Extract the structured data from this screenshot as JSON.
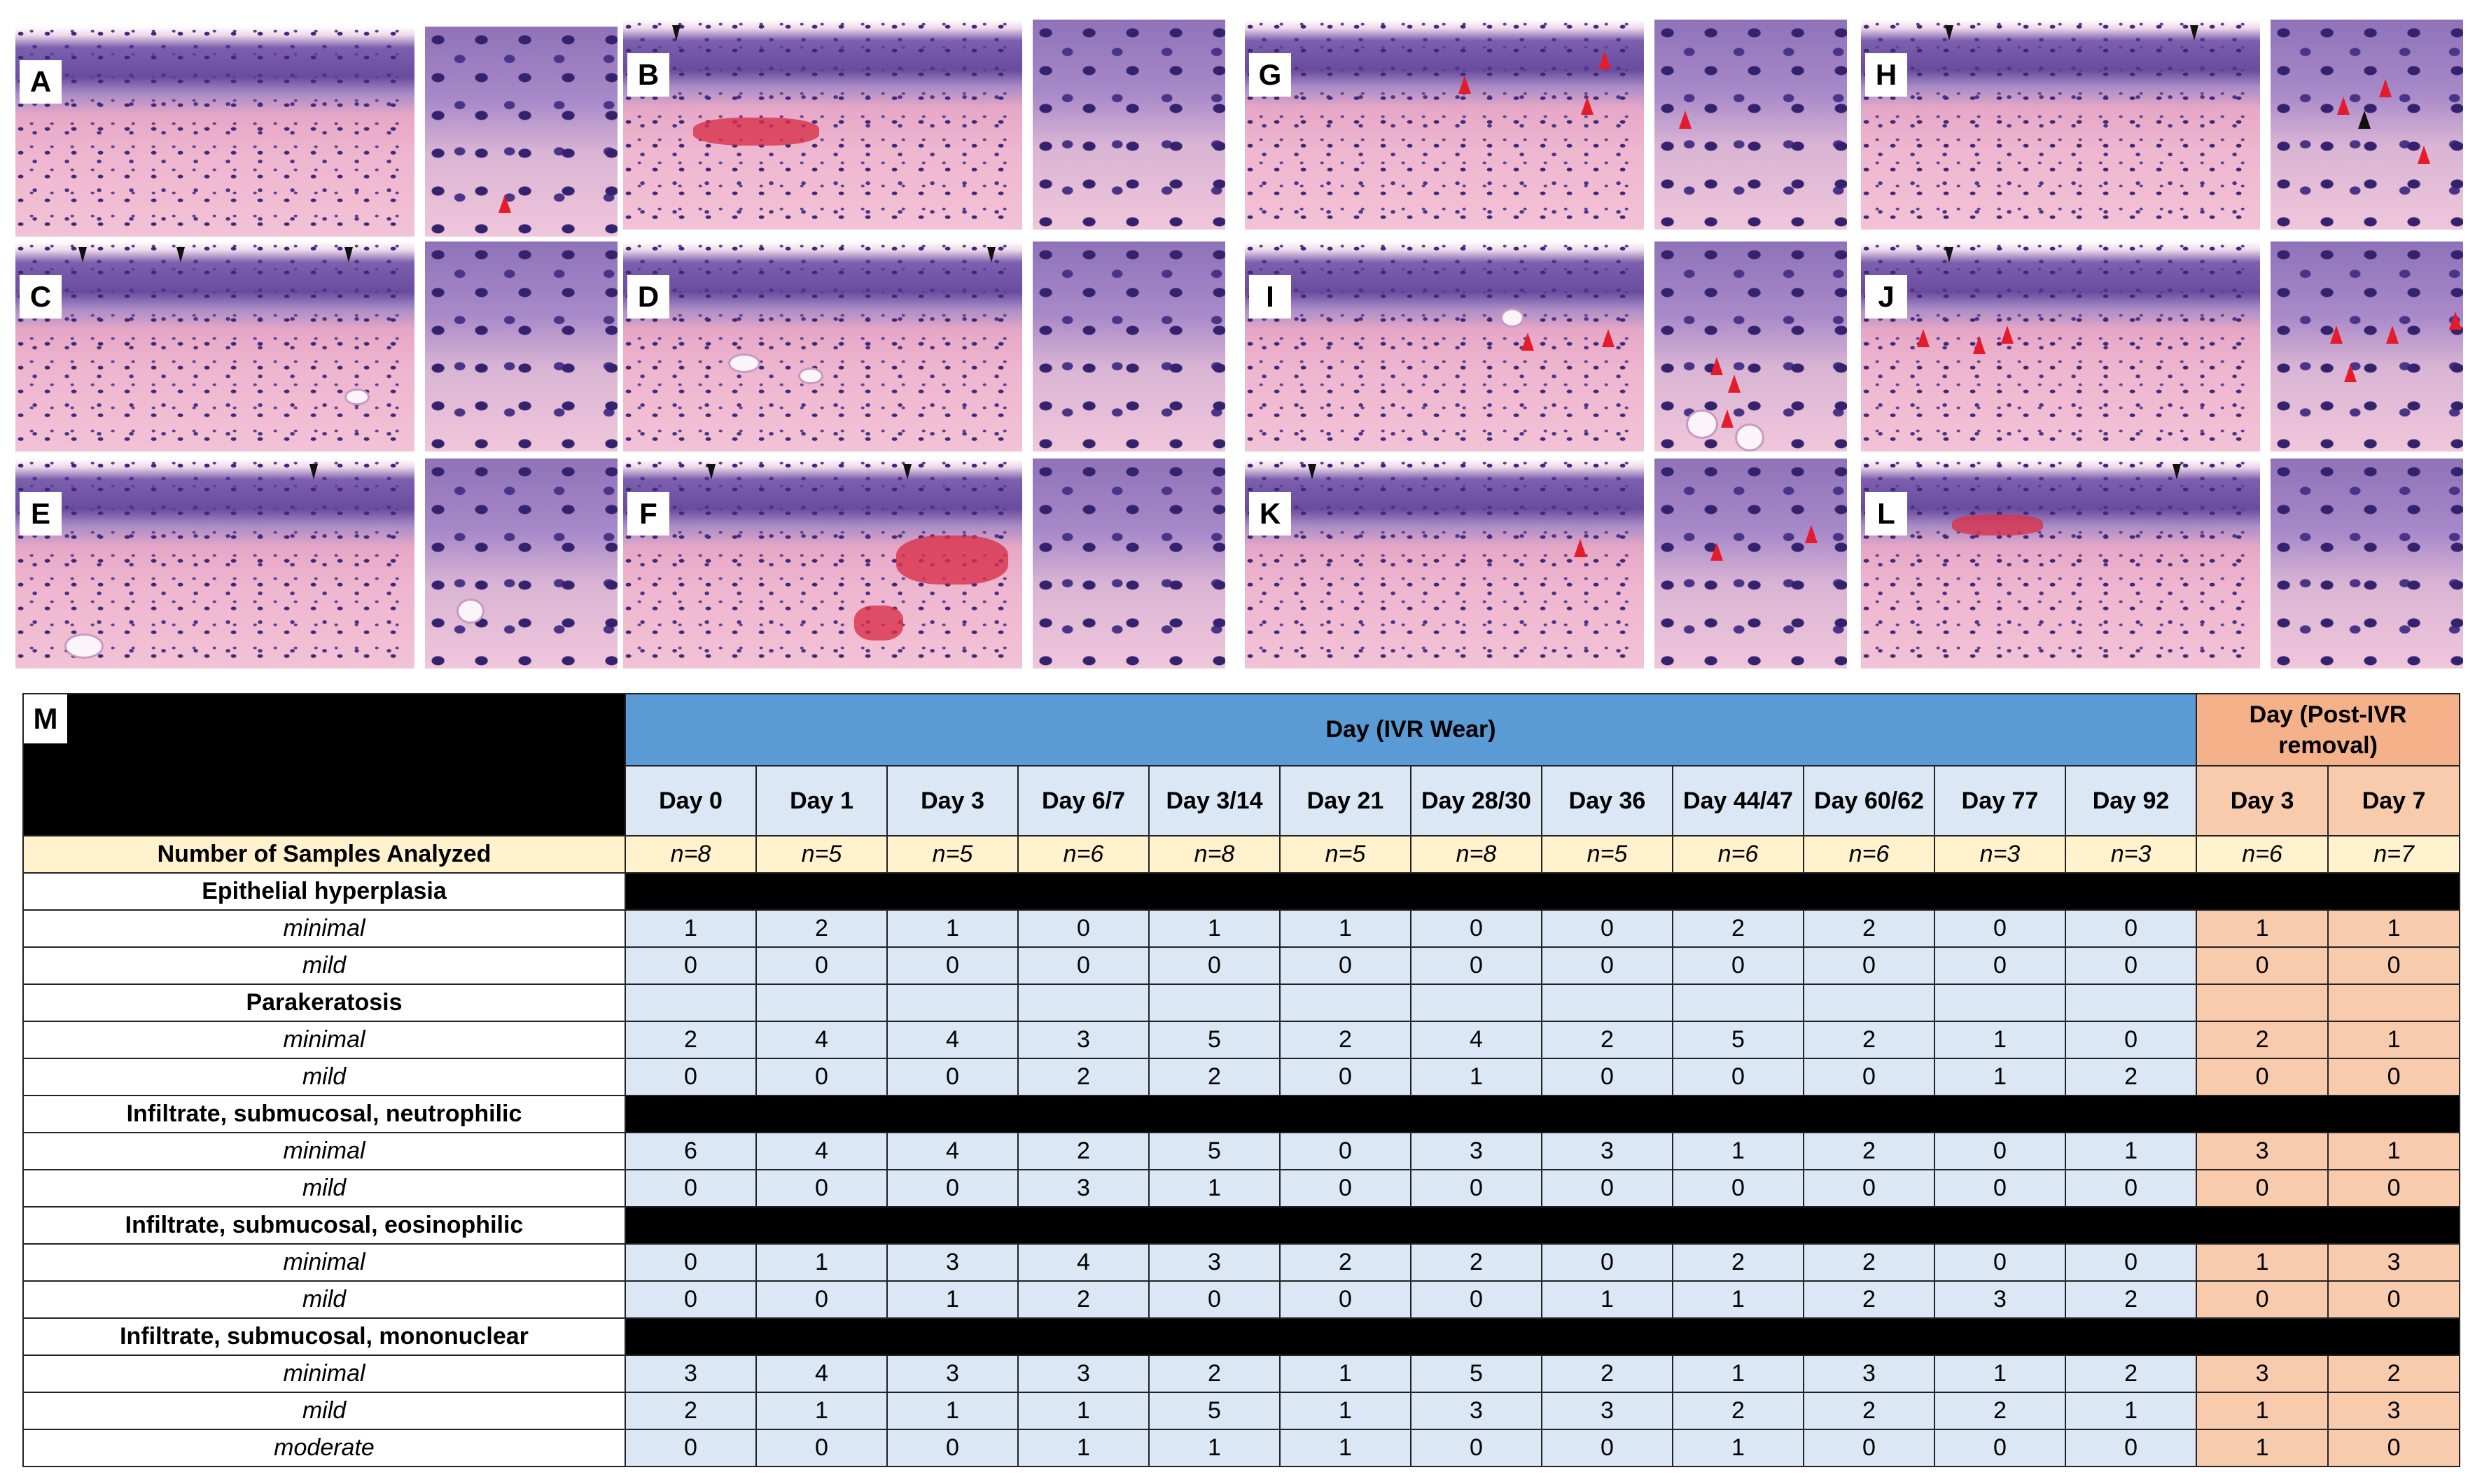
{
  "figure": {
    "panels": [
      "A",
      "B",
      "C",
      "D",
      "E",
      "F",
      "G",
      "H",
      "I",
      "J",
      "K",
      "L"
    ]
  },
  "table": {
    "label": "M",
    "group_wear": "Day (IVR Wear)",
    "group_post": "Day (Post-IVR removal)",
    "wear_days": [
      "Day 0",
      "Day 1",
      "Day 3",
      "Day 6/7",
      "Day 3/14",
      "Day 21",
      "Day 28/30",
      "Day 36",
      "Day 44/47",
      "Day 60/62",
      "Day 77",
      "Day 92"
    ],
    "post_days": [
      "Day 3",
      "Day 7"
    ],
    "samples_label": "Number of Samples Analyzed",
    "samples": [
      "n=8",
      "n=5",
      "n=5",
      "n=6",
      "n=8",
      "n=5",
      "n=8",
      "n=5",
      "n=6",
      "n=6",
      "n=3",
      "n=3",
      "n=6",
      "n=7"
    ],
    "categories": [
      {
        "name": "Epithelial hyperplasia",
        "header_fill": "black",
        "rows": [
          {
            "severity": "minimal",
            "values": [
              "1",
              "2",
              "1",
              "0",
              "1",
              "1",
              "0",
              "0",
              "2",
              "2",
              "0",
              "0",
              "1",
              "1"
            ]
          },
          {
            "severity": "mild",
            "values": [
              "0",
              "0",
              "0",
              "0",
              "0",
              "0",
              "0",
              "0",
              "0",
              "0",
              "0",
              "0",
              "0",
              "0"
            ]
          }
        ]
      },
      {
        "name": "Parakeratosis",
        "header_fill": "color",
        "rows": [
          {
            "severity": "minimal",
            "values": [
              "2",
              "4",
              "4",
              "3",
              "5",
              "2",
              "4",
              "2",
              "5",
              "2",
              "1",
              "0",
              "2",
              "1"
            ]
          },
          {
            "severity": "mild",
            "values": [
              "0",
              "0",
              "0",
              "2",
              "2",
              "0",
              "1",
              "0",
              "0",
              "0",
              "1",
              "2",
              "0",
              "0"
            ]
          }
        ]
      },
      {
        "name": "Infiltrate, submucosal, neutrophilic",
        "header_fill": "black",
        "rows": [
          {
            "severity": "minimal",
            "values": [
              "6",
              "4",
              "4",
              "2",
              "5",
              "0",
              "3",
              "3",
              "1",
              "2",
              "0",
              "1",
              "3",
              "1"
            ]
          },
          {
            "severity": "mild",
            "values": [
              "0",
              "0",
              "0",
              "3",
              "1",
              "0",
              "0",
              "0",
              "0",
              "0",
              "0",
              "0",
              "0",
              "0"
            ]
          }
        ]
      },
      {
        "name": "Infiltrate, submucosal, eosinophilic",
        "header_fill": "black",
        "rows": [
          {
            "severity": "minimal",
            "values": [
              "0",
              "1",
              "3",
              "4",
              "3",
              "2",
              "2",
              "0",
              "2",
              "2",
              "0",
              "0",
              "1",
              "3"
            ]
          },
          {
            "severity": "mild",
            "values": [
              "0",
              "0",
              "1",
              "2",
              "0",
              "0",
              "0",
              "1",
              "1",
              "2",
              "3",
              "2",
              "0",
              "0"
            ]
          }
        ]
      },
      {
        "name": "Infiltrate, submucosal, mononuclear",
        "header_fill": "black",
        "rows": [
          {
            "severity": "minimal",
            "values": [
              "3",
              "4",
              "3",
              "3",
              "2",
              "1",
              "5",
              "2",
              "1",
              "3",
              "1",
              "2",
              "3",
              "2"
            ]
          },
          {
            "severity": "mild",
            "values": [
              "2",
              "1",
              "1",
              "1",
              "5",
              "1",
              "3",
              "3",
              "2",
              "2",
              "2",
              "1",
              "1",
              "3"
            ]
          },
          {
            "severity": "moderate",
            "values": [
              "0",
              "0",
              "0",
              "1",
              "1",
              "1",
              "0",
              "0",
              "1",
              "0",
              "0",
              "0",
              "1",
              "0"
            ]
          }
        ]
      }
    ]
  },
  "colors": {
    "wear_header": "#5b9bd5",
    "wear_cells": "#dbe7f4",
    "post_header": "#f4b18a",
    "post_cells": "#f8cbad",
    "samples_row": "#fff2cc",
    "arrow_red": "#e51a2a"
  }
}
